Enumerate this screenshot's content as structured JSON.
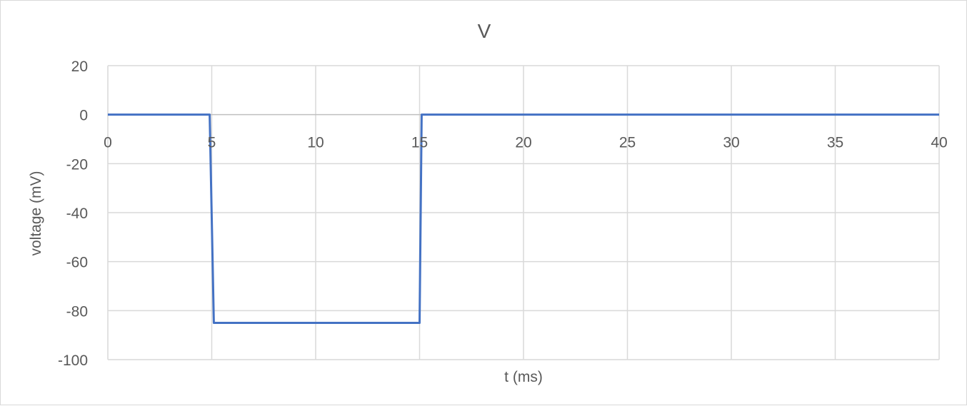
{
  "chart_data": {
    "type": "line",
    "title": "V",
    "xlabel": "t (ms)",
    "ylabel": "voltage (mV)",
    "xlim": [
      0,
      40
    ],
    "ylim": [
      -100,
      20
    ],
    "x_ticks": [
      0,
      5,
      10,
      15,
      20,
      25,
      30,
      35,
      40
    ],
    "y_ticks": [
      20,
      0,
      -20,
      -40,
      -60,
      -80,
      -100
    ],
    "grid": true,
    "legend": "none",
    "series": [
      {
        "color": "#4472C4",
        "x": [
          0,
          4.9,
          5.1,
          15.0,
          15.1,
          40
        ],
        "y": [
          0,
          0,
          -85,
          -85,
          0,
          0
        ]
      }
    ]
  }
}
